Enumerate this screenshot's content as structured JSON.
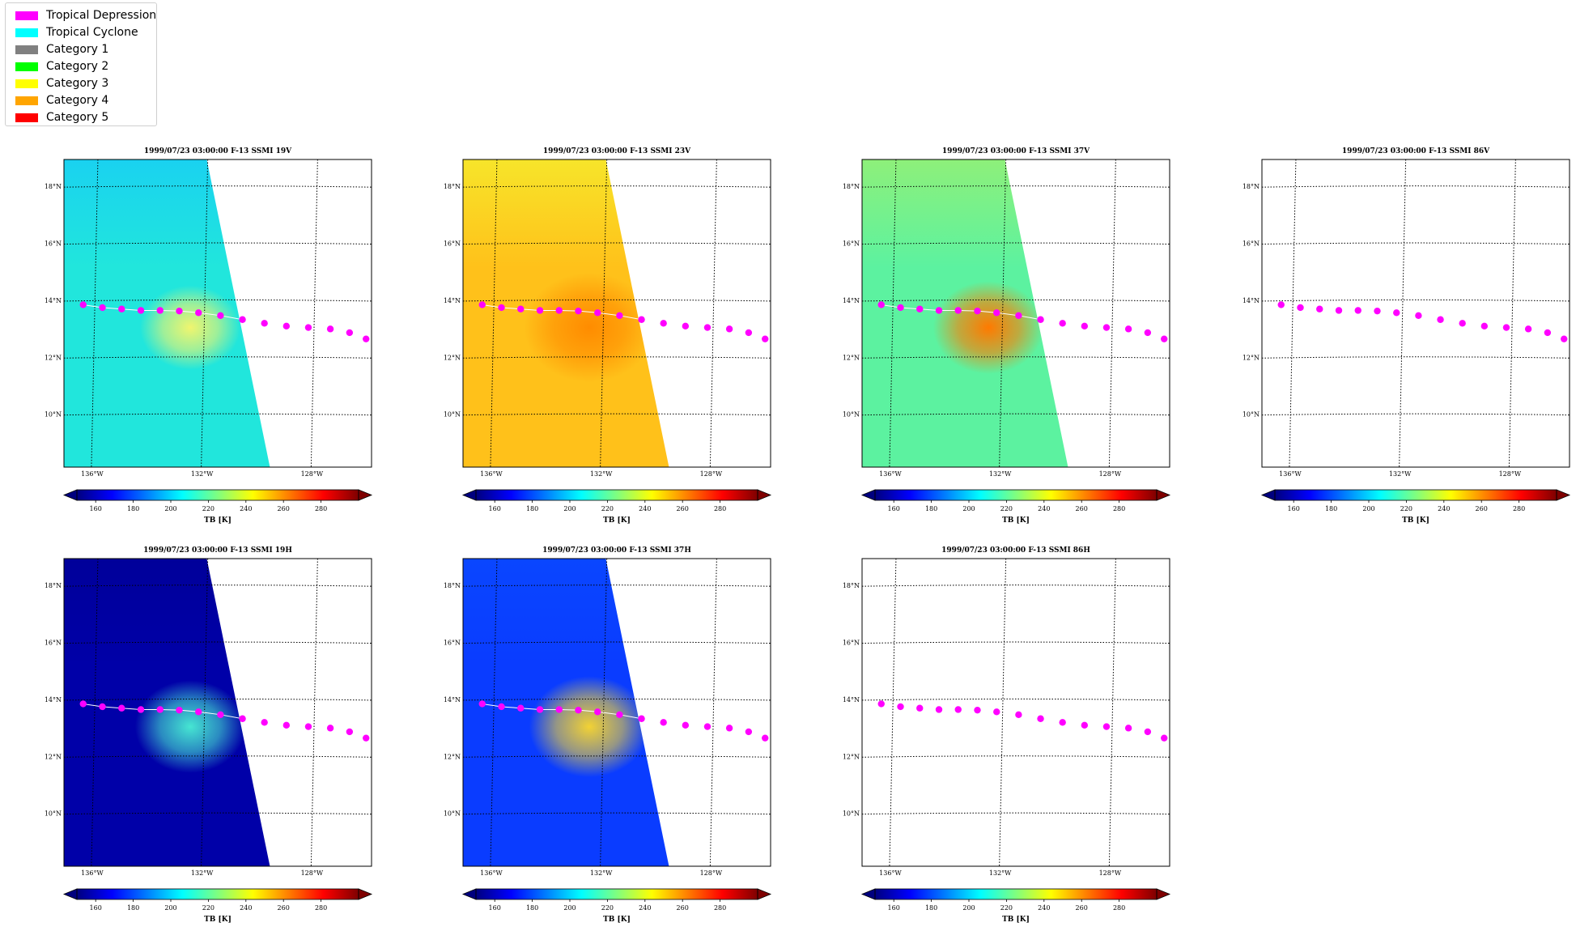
{
  "legend": {
    "items": [
      {
        "label": "Tropical Depression",
        "color": "#ff00ff"
      },
      {
        "label": "Tropical Cyclone",
        "color": "#00ffff"
      },
      {
        "label": "Category 1",
        "color": "#808080"
      },
      {
        "label": "Category 2",
        "color": "#00ff00"
      },
      {
        "label": "Category 3",
        "color": "#ffff00"
      },
      {
        "label": "Category 4",
        "color": "#ffa500"
      },
      {
        "label": "Category 5",
        "color": "#ff0000"
      }
    ]
  },
  "map": {
    "lon_range": [
      -137.0,
      -125.8
    ],
    "lat_range": [
      8.2,
      19.0
    ],
    "lon_ticks": [
      {
        "value": -136,
        "label": "136°W"
      },
      {
        "value": -132,
        "label": "132°W"
      },
      {
        "value": -128,
        "label": "128°W"
      }
    ],
    "lat_ticks": [
      {
        "value": 10,
        "label": "10°N"
      },
      {
        "value": 12,
        "label": "12°N"
      },
      {
        "value": 14,
        "label": "14°N"
      },
      {
        "value": 16,
        "label": "16°N"
      },
      {
        "value": 18,
        "label": "18°N"
      }
    ],
    "swath_edge": [
      {
        "lon": -131.8,
        "lat": 19.0
      },
      {
        "lon": -129.5,
        "lat": 8.2
      }
    ],
    "track_color": "#ff00ff",
    "track": [
      {
        "lon": -136.3,
        "lat": 13.9
      },
      {
        "lon": -135.6,
        "lat": 13.8
      },
      {
        "lon": -134.9,
        "lat": 13.75
      },
      {
        "lon": -134.2,
        "lat": 13.7
      },
      {
        "lon": -133.5,
        "lat": 13.7
      },
      {
        "lon": -132.8,
        "lat": 13.68
      },
      {
        "lon": -132.1,
        "lat": 13.62
      },
      {
        "lon": -131.3,
        "lat": 13.52
      },
      {
        "lon": -130.5,
        "lat": 13.38
      },
      {
        "lon": -129.7,
        "lat": 13.25
      },
      {
        "lon": -128.9,
        "lat": 13.15
      },
      {
        "lon": -128.1,
        "lat": 13.1
      },
      {
        "lon": -127.3,
        "lat": 13.05
      },
      {
        "lon": -126.6,
        "lat": 12.92
      },
      {
        "lon": -126.0,
        "lat": 12.7
      }
    ],
    "cyclone_center": {
      "lon": -132.4,
      "lat": 13.1
    }
  },
  "colorbar": {
    "label": "TB [K]",
    "vmin": 150,
    "vmax": 300,
    "ticks": [
      160,
      180,
      200,
      220,
      240,
      260,
      280
    ],
    "colormap": [
      "#00007f",
      "#0000ff",
      "#007fff",
      "#00ffff",
      "#7fff7f",
      "#ffff00",
      "#ff7f00",
      "#ff0000",
      "#7f0000"
    ]
  },
  "panels": [
    {
      "title": "1999/07/23 03:00:00  F-13 SSMI 19V",
      "has_data": true,
      "field": {
        "bg": "#21e6dc",
        "bg_top": "#1ad2f0",
        "core": "#f0f56e",
        "core_size": 1.0
      }
    },
    {
      "title": "1999/07/23 03:00:00  F-13 SSMI 23V",
      "has_data": true,
      "field": {
        "bg": "#ffc11a",
        "bg_top": "#f7e52a",
        "core": "#ff8c00",
        "core_size": 1.3
      }
    },
    {
      "title": "1999/07/23 03:00:00  F-13 SSMI 37V",
      "has_data": true,
      "field": {
        "bg": "#5cf2a0",
        "bg_top": "#8ef07a",
        "core": "#ff7a00",
        "core_size": 1.1
      }
    },
    {
      "title": "1999/07/23 03:00:00  F-13 SSMI 86V",
      "has_data": false,
      "field": null
    },
    {
      "title": "1999/07/23 03:00:00  F-13 SSMI 19H",
      "has_data": true,
      "field": {
        "bg": "#0000a8",
        "bg_top": "#00009a",
        "core": "#46e6d2",
        "core_size": 1.1
      }
    },
    {
      "title": "1999/07/23 03:00:00  F-13 SSMI 37H",
      "has_data": true,
      "field": {
        "bg": "#0a3cff",
        "bg_top": "#0a46ff",
        "core": "#f2d234",
        "core_size": 1.2
      }
    },
    {
      "title": "1999/07/23 03:00:00  F-13 SSMI 86H",
      "has_data": false,
      "field": null
    }
  ]
}
